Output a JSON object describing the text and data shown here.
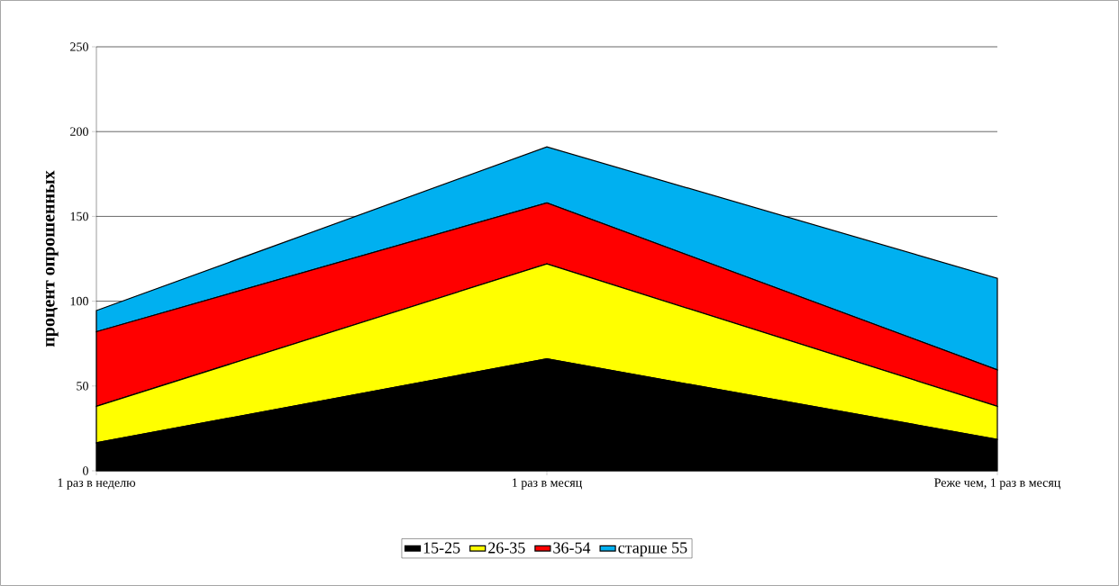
{
  "chart_data": {
    "type": "area",
    "stacked": true,
    "ylabel": "процент опрошенных",
    "categories": [
      "1 раз в неделю",
      "1 раз в месяц",
      "Реже чем, 1 раз в месяц"
    ],
    "series": [
      {
        "name": "15-25",
        "color": "#000000",
        "values": [
          16.5,
          66,
          18.5
        ]
      },
      {
        "name": "26-35",
        "color": "#ffff00",
        "values": [
          21.5,
          56,
          19.5
        ]
      },
      {
        "name": "36-54",
        "color": "#ff0000",
        "values": [
          44,
          36,
          21.5
        ]
      },
      {
        "name": "старше 55",
        "color": "#00b0f0",
        "values": [
          12.5,
          33,
          54
        ]
      }
    ],
    "ylim": [
      0,
      250
    ],
    "yticks": [
      0,
      50,
      100,
      150,
      200,
      250
    ],
    "grid": "y",
    "legend": "bottom"
  }
}
